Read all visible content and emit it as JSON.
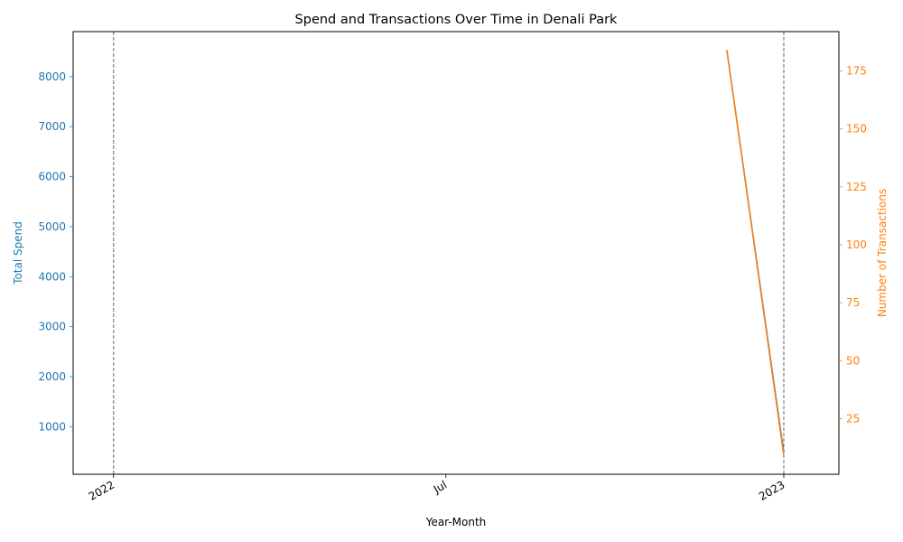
{
  "chart_data": {
    "type": "line",
    "title": "Spend and Transactions Over Time in Denali Park",
    "xlabel": "Year-Month",
    "x_axis": {
      "kind": "date",
      "range": [
        "2021-12-10",
        "2023-01-31"
      ],
      "ticks": [
        {
          "date": "2022-01-01",
          "label": "2022"
        },
        {
          "date": "2022-07-01",
          "label": "Jul"
        },
        {
          "date": "2023-01-01",
          "label": "2023"
        }
      ],
      "dashed_vertical_lines": [
        "2022-01-01",
        "2023-01-01"
      ]
    },
    "y_left": {
      "label": "Total Spend",
      "color": "#1f77b4",
      "ylim": [
        50,
        8900
      ],
      "ticks": [
        1000,
        2000,
        3000,
        4000,
        5000,
        6000,
        7000,
        8000
      ]
    },
    "y_right": {
      "label": "Number of Transactions",
      "color": "#ff7f0e",
      "ylim": [
        1,
        192
      ],
      "ticks": [
        25,
        50,
        75,
        100,
        125,
        150,
        175
      ]
    },
    "series": [
      {
        "axis": "left",
        "color": "#1f77b4",
        "points": [
          {
            "x": "2022-12-01",
            "y": 8530
          },
          {
            "x": "2023-01-01",
            "y": 480
          }
        ]
      },
      {
        "axis": "right",
        "color": "#ff7f0e",
        "points": [
          {
            "x": "2022-12-01",
            "y": 184
          },
          {
            "x": "2023-01-01",
            "y": 9
          }
        ]
      }
    ],
    "grid": false,
    "legend": "none"
  }
}
